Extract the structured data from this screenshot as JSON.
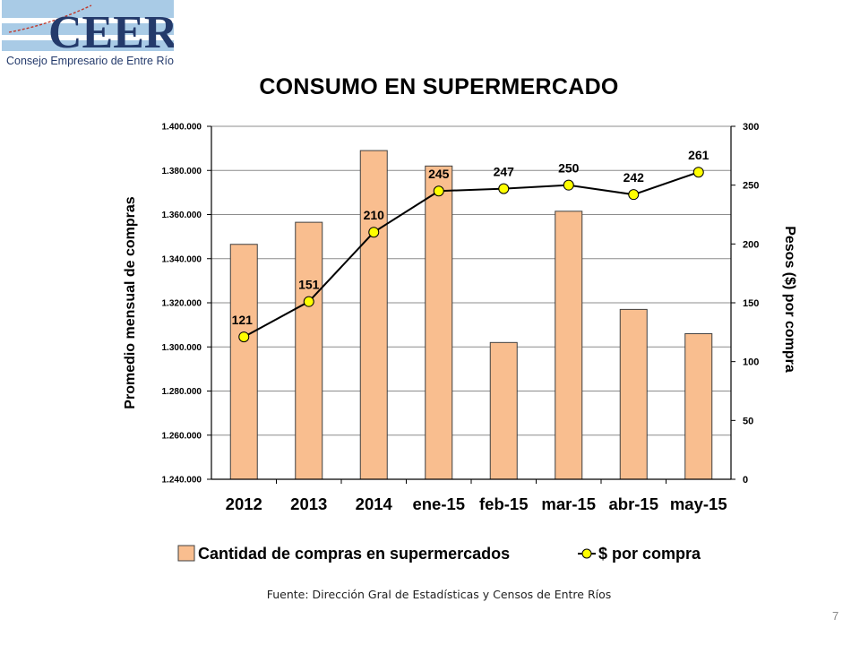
{
  "logo": {
    "text": "CEER",
    "subtitle": "Consejo Empresario de Entre Ríos"
  },
  "title": "CONSUMO EN SUPERMERCADO",
  "source": "Fuente: Dirección Gral de Estadísticas y Censos de Entre Ríos",
  "page_number": "7",
  "colors": {
    "bar_fill": "#F9BE8F",
    "bar_stroke": "#404040",
    "line": "#000000",
    "marker": "#FFFF00"
  },
  "chart_data": {
    "type": "bar",
    "categories": [
      "2012",
      "2013",
      "2014",
      "ene-15",
      "feb-15",
      "mar-15",
      "abr-15",
      "may-15"
    ],
    "series": [
      {
        "name": "Cantidad de compras en supermercados",
        "type": "bar",
        "axis": "left",
        "values": [
          1346500,
          1356500,
          1389000,
          1382000,
          1302000,
          1361500,
          1317000,
          1306000
        ]
      },
      {
        "name": "$ por compra",
        "type": "line",
        "axis": "right",
        "values": [
          121,
          151,
          210,
          245,
          247,
          250,
          242,
          261
        ]
      }
    ],
    "ylabel": "Promedio mensual de compras",
    "ylabel_right": "Pesos ($) por compra",
    "ylim": [
      1240000,
      1400000
    ],
    "ylim_right": [
      0,
      300
    ],
    "y_ticks": [
      "1.240.000",
      "1.260.000",
      "1.280.000",
      "1.300.000",
      "1.320.000",
      "1.340.000",
      "1.360.000",
      "1.380.000",
      "1.400.000"
    ],
    "y_ticks_right": [
      "0",
      "50",
      "100",
      "150",
      "200",
      "250",
      "300"
    ],
    "grid": true,
    "legend": "bottom"
  }
}
